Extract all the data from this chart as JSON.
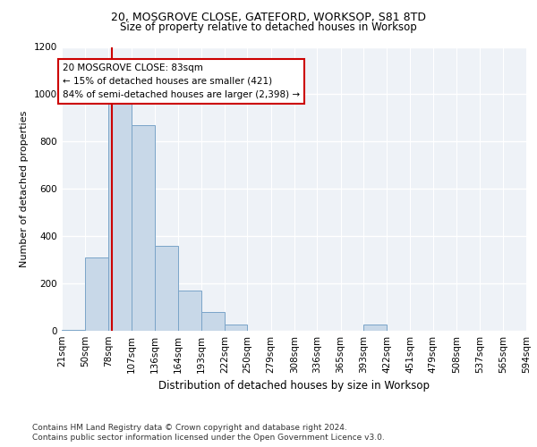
{
  "title_line1": "20, MOSGROVE CLOSE, GATEFORD, WORKSOP, S81 8TD",
  "title_line2": "Size of property relative to detached houses in Worksop",
  "xlabel": "Distribution of detached houses by size in Worksop",
  "ylabel": "Number of detached properties",
  "footnote1": "Contains HM Land Registry data © Crown copyright and database right 2024.",
  "footnote2": "Contains public sector information licensed under the Open Government Licence v3.0.",
  "annotation_line1": "20 MOSGROVE CLOSE: 83sqm",
  "annotation_line2": "← 15% of detached houses are smaller (421)",
  "annotation_line3": "84% of semi-detached houses are larger (2,398) →",
  "bar_color": "#c8d8e8",
  "bar_edge_color": "#7aa4c8",
  "marker_color": "#cc0000",
  "plot_bg_color": "#eef2f7",
  "ylim": [
    0,
    1200
  ],
  "yticks": [
    0,
    200,
    400,
    600,
    800,
    1000,
    1200
  ],
  "bins": [
    21,
    50,
    78,
    107,
    136,
    164,
    193,
    222,
    250,
    279,
    308,
    336,
    365,
    393,
    422,
    451,
    479,
    508,
    537,
    565,
    594
  ],
  "bin_labels": [
    "21sqm",
    "50sqm",
    "78sqm",
    "107sqm",
    "136sqm",
    "164sqm",
    "193sqm",
    "222sqm",
    "250sqm",
    "279sqm",
    "308sqm",
    "336sqm",
    "365sqm",
    "393sqm",
    "422sqm",
    "451sqm",
    "479sqm",
    "508sqm",
    "537sqm",
    "565sqm",
    "594sqm"
  ],
  "bar_heights": [
    5,
    310,
    970,
    870,
    360,
    170,
    80,
    25,
    0,
    0,
    0,
    0,
    0,
    25,
    0,
    0,
    0,
    0,
    0,
    0,
    0
  ],
  "property_size": 83,
  "title_fontsize1": 9,
  "title_fontsize2": 8.5,
  "ylabel_fontsize": 8,
  "xlabel_fontsize": 8.5,
  "tick_fontsize": 7.5,
  "ann_fontsize": 7.5,
  "footnote_fontsize": 6.5
}
